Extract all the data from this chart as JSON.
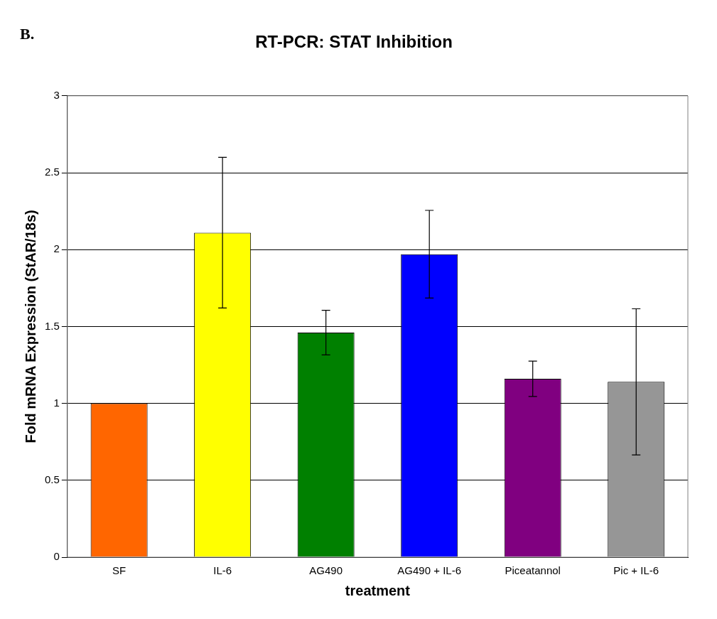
{
  "chart_data": {
    "type": "bar",
    "title": "RT-PCR: STAT Inhibition",
    "xlabel": "treatment",
    "ylabel": "Fold mRNA Expression (StAR/18s)",
    "annotations": [
      "B."
    ],
    "categories": [
      "SF",
      "IL-6",
      "AG490",
      "AG490 + IL-6",
      "Piceatannol",
      "Pic + IL-6"
    ],
    "values": [
      1.0,
      2.11,
      1.46,
      1.97,
      1.16,
      1.14
    ],
    "colors": [
      "#ff6600",
      "#ffff00",
      "#008000",
      "#0000ff",
      "#800080",
      "#969696"
    ],
    "errors": [
      null,
      0.49,
      0.145,
      0.285,
      0.115,
      0.475
    ],
    "ylim": [
      0,
      3
    ],
    "yticks": [
      0,
      0.5,
      1,
      1.5,
      2,
      2.5,
      3
    ],
    "grid": "y",
    "legend": false
  }
}
